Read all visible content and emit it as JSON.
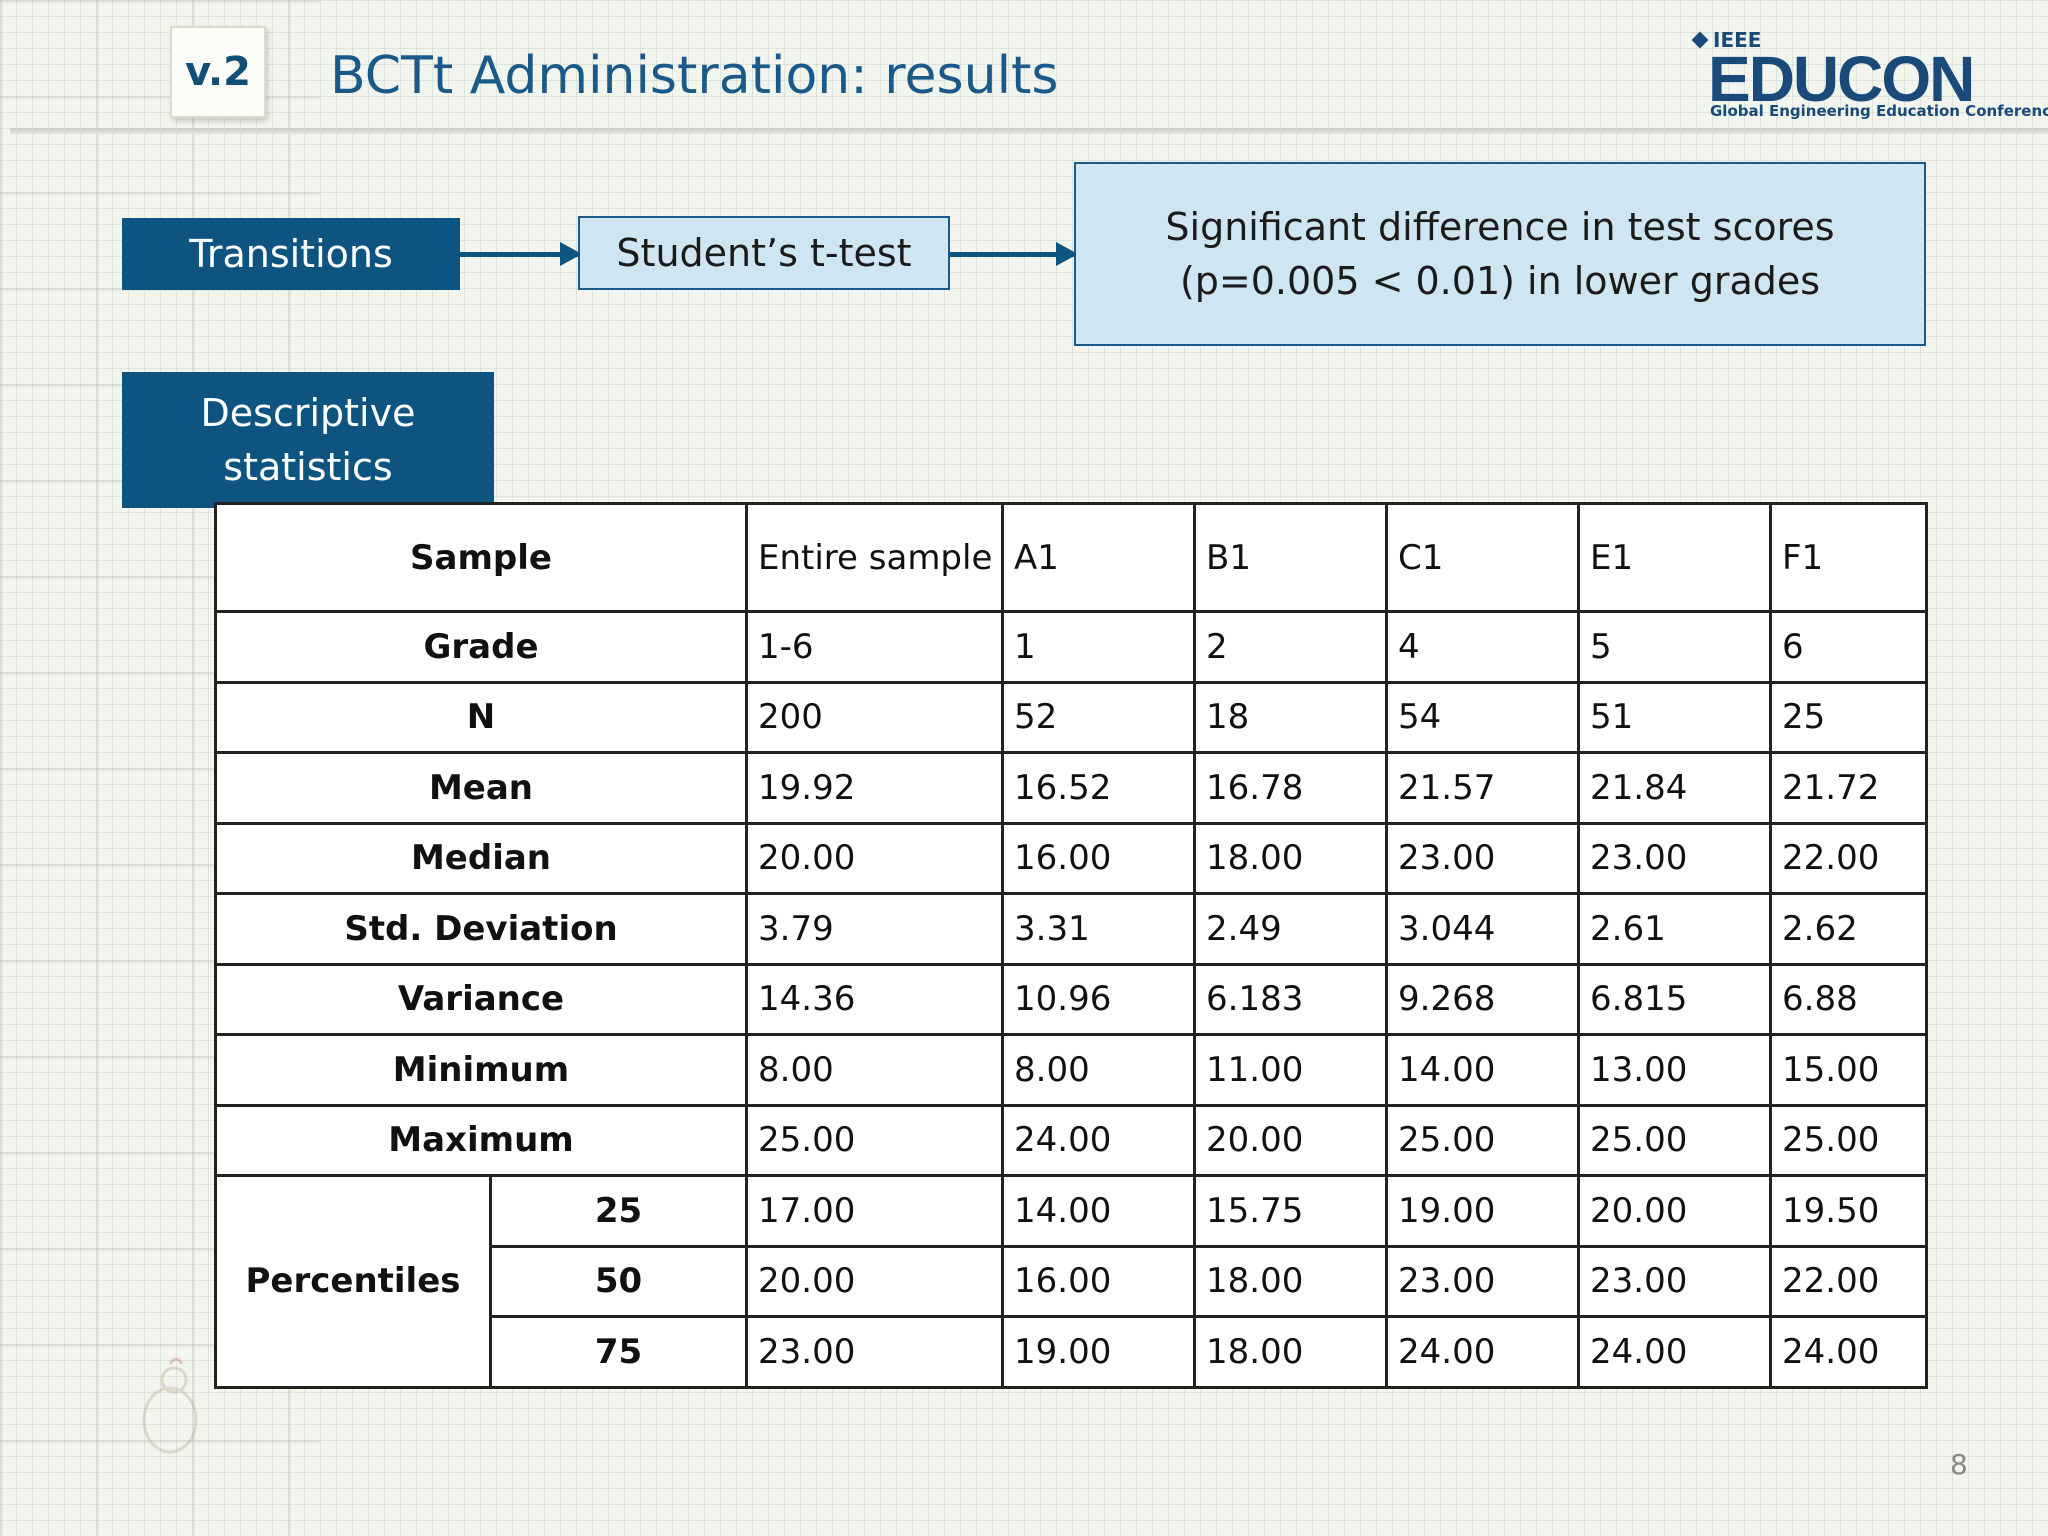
{
  "header": {
    "version_badge": "v.2",
    "title": "BCTt Administration: results"
  },
  "logo": {
    "ieee": "IEEE",
    "name": "EDUCON",
    "tagline": "Global Engineering Education Conference"
  },
  "flow": {
    "step1": "Transitions",
    "step2": "Student’s t-test",
    "result_line1": "Significant difference in test scores",
    "result_line2": "(p=0.005 < 0.01) in lower grades"
  },
  "section_label_line1": "Descriptive",
  "section_label_line2": "statistics",
  "table": {
    "header_label": "Sample",
    "samples": [
      "Entire sample",
      "A1",
      "B1",
      "C1",
      "E1",
      "F1"
    ],
    "rows": [
      {
        "label": "Grade",
        "values": [
          "1-6",
          "1",
          "2",
          "4",
          "5",
          "6"
        ]
      },
      {
        "label": "N",
        "values": [
          "200",
          "52",
          "18",
          "54",
          "51",
          "25"
        ]
      },
      {
        "label": "Mean",
        "values": [
          "19.92",
          "16.52",
          "16.78",
          "21.57",
          "21.84",
          "21.72"
        ]
      },
      {
        "label": "Median",
        "values": [
          "20.00",
          "16.00",
          "18.00",
          "23.00",
          "23.00",
          "22.00"
        ]
      },
      {
        "label": "Std. Deviation",
        "values": [
          "3.79",
          "3.31",
          "2.49",
          "3.044",
          "2.61",
          "2.62"
        ]
      },
      {
        "label": "Variance",
        "values": [
          "14.36",
          "10.96",
          "6.183",
          "9.268",
          "6.815",
          "6.88"
        ]
      },
      {
        "label": "Minimum",
        "values": [
          "8.00",
          "8.00",
          "11.00",
          "14.00",
          "13.00",
          "15.00"
        ]
      },
      {
        "label": "Maximum",
        "values": [
          "25.00",
          "24.00",
          "20.00",
          "25.00",
          "25.00",
          "25.00"
        ]
      }
    ],
    "percentiles_label": "Percentiles",
    "percentiles": [
      {
        "label": "25",
        "values": [
          "17.00",
          "14.00",
          "15.75",
          "19.00",
          "20.00",
          "19.50"
        ]
      },
      {
        "label": "50",
        "values": [
          "20.00",
          "16.00",
          "18.00",
          "23.00",
          "23.00",
          "22.00"
        ]
      },
      {
        "label": "75",
        "values": [
          "23.00",
          "19.00",
          "18.00",
          "24.00",
          "24.00",
          "24.00"
        ]
      }
    ]
  },
  "page_number": "8"
}
